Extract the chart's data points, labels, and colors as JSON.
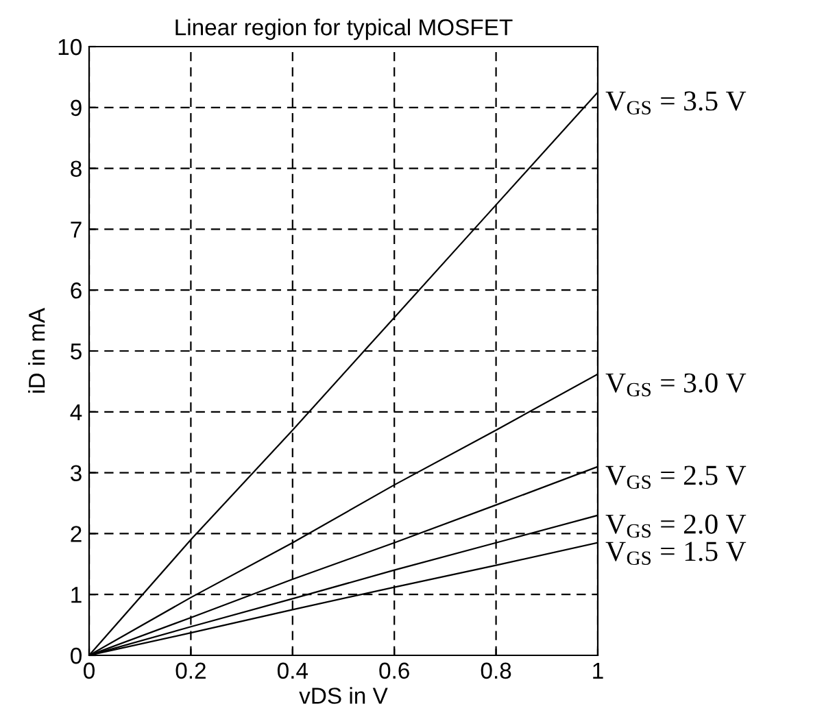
{
  "chart_data": {
    "type": "line",
    "title": "Linear region for typical MOSFET",
    "xlabel": "vDS in V",
    "ylabel": "iD in mA",
    "x": [
      0,
      0.2,
      0.4,
      0.6,
      0.8,
      1
    ],
    "series": [
      {
        "name": "V$_{GS}$ = 3.5 V",
        "color": "#000000",
        "values": [
          0,
          1.9,
          3.7,
          5.55,
          7.4,
          9.25
        ]
      },
      {
        "name": "V$_{GS}$ = 3.0 V",
        "color": "#000000",
        "values": [
          0,
          0.95,
          1.85,
          2.8,
          3.7,
          4.62
        ]
      },
      {
        "name": "V$_{GS}$ = 2.5 V",
        "color": "#000000",
        "values": [
          0,
          0.62,
          1.25,
          1.85,
          2.47,
          3.1
        ]
      },
      {
        "name": "V$_{GS}$ = 2.0 V",
        "color": "#000000",
        "values": [
          0,
          0.47,
          0.93,
          1.4,
          1.85,
          2.3
        ]
      },
      {
        "name": "V$_{GS}$ = 1.5 V",
        "color": "#000000",
        "values": [
          0,
          0.37,
          0.75,
          1.12,
          1.48,
          1.85
        ]
      }
    ],
    "xlim": [
      0,
      1
    ],
    "xticks": [
      0,
      0.2,
      0.4,
      0.6,
      0.8,
      1
    ],
    "ylim": [
      0,
      10
    ],
    "yticks": [
      0,
      1,
      2,
      3,
      4,
      5,
      6,
      7,
      8,
      9,
      10
    ],
    "grid": true,
    "line_style": "solid",
    "marker": "none",
    "legend": false
  }
}
